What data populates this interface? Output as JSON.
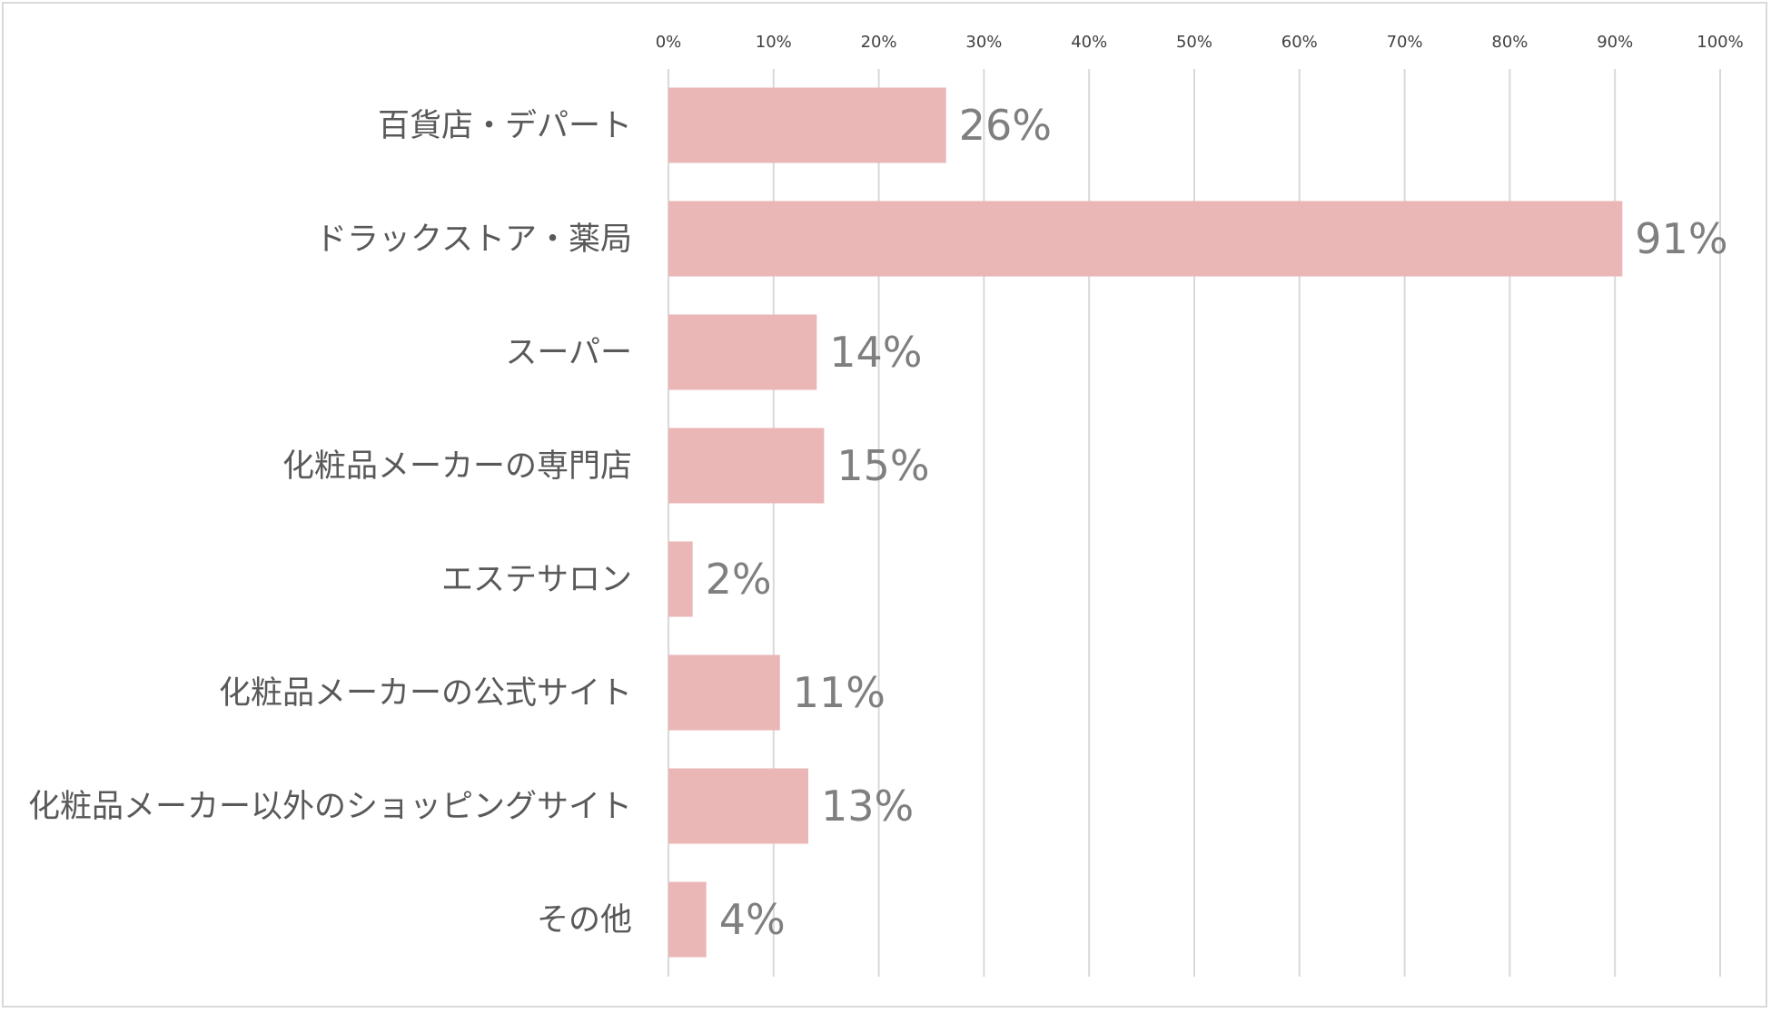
{
  "chart_data": {
    "type": "bar",
    "orientation": "horizontal",
    "title": "",
    "xlabel": "",
    "ylabel": "",
    "xlim": [
      0,
      100
    ],
    "grid": true,
    "legend": "none",
    "bar_color": "#ebb6b6",
    "tick_labels": [
      "0%",
      "10%",
      "20%",
      "30%",
      "40%",
      "50%",
      "60%",
      "70%",
      "80%",
      "90%",
      "100%"
    ],
    "categories": [
      "百貨店・デパート",
      "ドラックストア・薬局",
      "スーパー",
      "化粧品メーカーの専門店",
      "エステサロン",
      "化粧品メーカーの公式サイト",
      "化粧品メーカー以外のショッピングサイト",
      "その他"
    ],
    "values": [
      26.4,
      90.7,
      14.1,
      14.8,
      2.3,
      10.6,
      13.3,
      3.6
    ],
    "data_labels": [
      "26%",
      "91%",
      "14%",
      "15%",
      "2%",
      "11%",
      "13%",
      "4%"
    ]
  }
}
